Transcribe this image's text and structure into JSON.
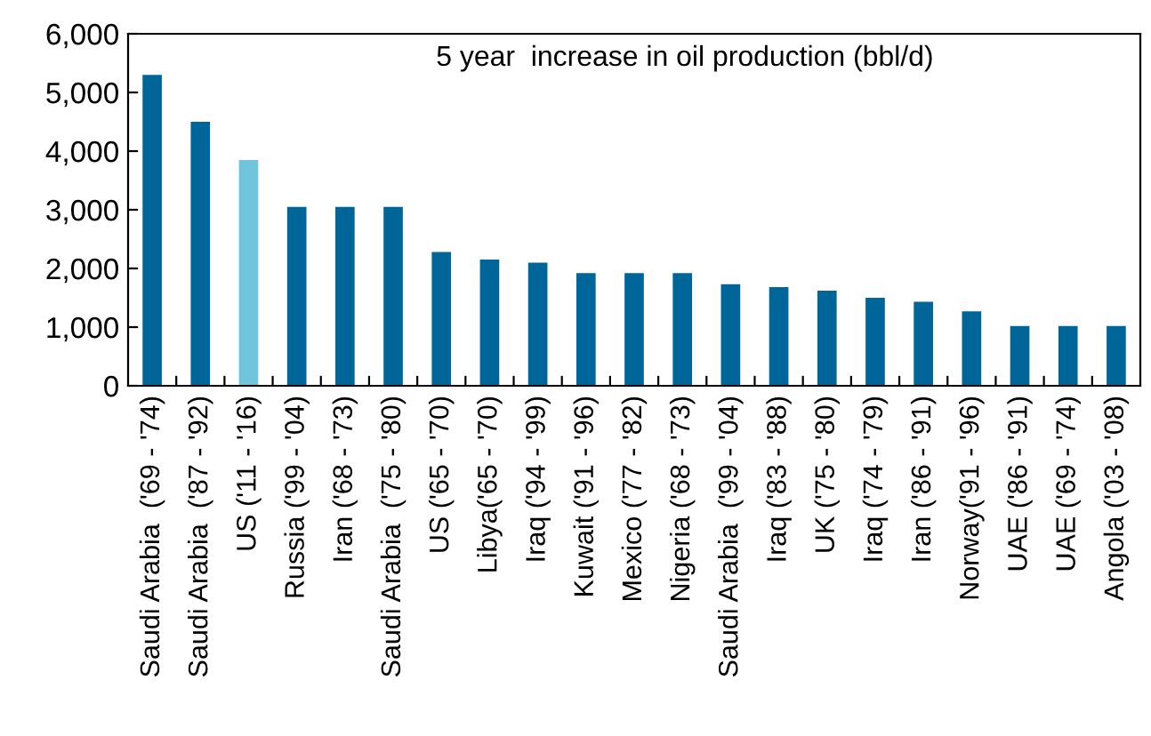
{
  "chart_data": {
    "type": "bar",
    "title": "5 year  increase in oil production (bbl/d)",
    "categories": [
      "Saudi Arabia  ('69 - '74)",
      "Saudi Arabia  ('87 - '92)",
      "US ('11 - '16)",
      "Russia ('99 - '04)",
      "Iran ('68 - '73)",
      "Saudi Arabia  ('75 - '80)",
      "US ('65 - '70)",
      "Libya('65 - '70)",
      "Iraq ('94 - '99)",
      "Kuwait ('91 - '96)",
      "Mexico ('77 - '82)",
      "Nigeria ('68 - '73)",
      "Saudi Arabia  ('99 - '04)",
      "Iraq ('83 - '88)",
      "UK ('75 - '80)",
      "Iraq ('74 - '79)",
      "Iran ('86 - '91)",
      "Norway('91 - '96)",
      "UAE ('86 - '91)",
      "UAE ('69 - '74)",
      "Angola ('03 - '08)"
    ],
    "values": [
      5300,
      4500,
      3850,
      3050,
      3050,
      3050,
      2280,
      2150,
      2100,
      1920,
      1920,
      1920,
      1730,
      1680,
      1620,
      1500,
      1430,
      1270,
      1020,
      1020,
      1020
    ],
    "colors": [
      "#006699",
      "#006699",
      "#70c4dc",
      "#006699",
      "#006699",
      "#006699",
      "#006699",
      "#006699",
      "#006699",
      "#006699",
      "#006699",
      "#006699",
      "#006699",
      "#006699",
      "#006699",
      "#006699",
      "#006699",
      "#006699",
      "#006699",
      "#006699",
      "#006699"
    ],
    "ylim": [
      0,
      6000
    ],
    "yticks": [
      {
        "value": 0,
        "label": "0"
      },
      {
        "value": 1000,
        "label": "1,000"
      },
      {
        "value": 2000,
        "label": "2,000"
      },
      {
        "value": 3000,
        "label": "3,000"
      },
      {
        "value": 4000,
        "label": "4,000"
      },
      {
        "value": 5000,
        "label": "5,000"
      },
      {
        "value": 6000,
        "label": "6,000"
      }
    ],
    "grid": false
  }
}
